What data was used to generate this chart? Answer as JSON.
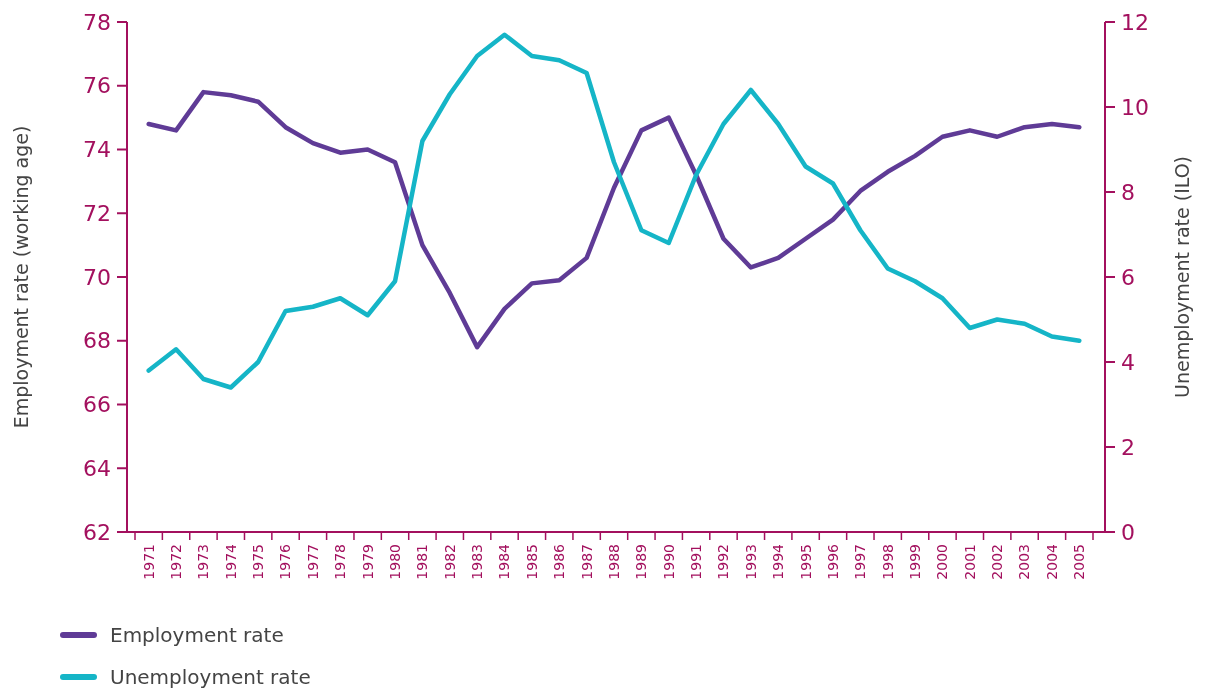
{
  "chart_data": {
    "type": "line",
    "ylabel": "Employment rate (working age)",
    "y2label": "Unemployment rate (ILO)",
    "categories": [
      "1971",
      "1972",
      "1973",
      "1974",
      "1975",
      "1976",
      "1977",
      "1978",
      "1979",
      "1980",
      "1981",
      "1982",
      "1983",
      "1984",
      "1985",
      "1986",
      "1987",
      "1988",
      "1989",
      "1990",
      "1991",
      "1992",
      "1993",
      "1994",
      "1995",
      "1996",
      "1997",
      "1998",
      "1999",
      "2000",
      "2001",
      "2002",
      "2003",
      "2004",
      "2005"
    ],
    "series": [
      {
        "name": "Employment rate",
        "color": "#5f3b96",
        "values": [
          74.8,
          74.6,
          75.8,
          75.7,
          75.5,
          74.7,
          74.2,
          73.9,
          74.0,
          73.6,
          71.0,
          69.5,
          67.8,
          69.0,
          69.8,
          69.9,
          70.6,
          72.8,
          74.6,
          75.0,
          73.2,
          71.2,
          70.3,
          70.6,
          71.2,
          71.8,
          72.7,
          73.3,
          73.8,
          74.4,
          74.6,
          74.4,
          74.7,
          74.8,
          74.7
        ]
      },
      {
        "name": "Unemployment rate",
        "color": "#15b5c7",
        "axis": "y2",
        "values": [
          3.8,
          4.3,
          3.6,
          3.4,
          4.0,
          5.2,
          5.3,
          5.5,
          5.1,
          5.9,
          9.2,
          10.3,
          11.2,
          11.7,
          11.2,
          11.1,
          10.8,
          8.7,
          7.1,
          6.8,
          8.4,
          9.6,
          10.4,
          9.6,
          8.6,
          8.2,
          7.1,
          6.2,
          5.9,
          5.5,
          4.8,
          5.0,
          4.9,
          4.6,
          4.5
        ]
      }
    ],
    "ylim": [
      62,
      78
    ],
    "yticks": [
      62,
      64,
      66,
      68,
      70,
      72,
      74,
      76,
      78
    ],
    "y2lim": [
      0,
      12
    ],
    "y2ticks": [
      0,
      2,
      4,
      6,
      8,
      10,
      12
    ],
    "legend": "bottom left",
    "grid": false,
    "marker": "none",
    "line_style": "solid"
  }
}
